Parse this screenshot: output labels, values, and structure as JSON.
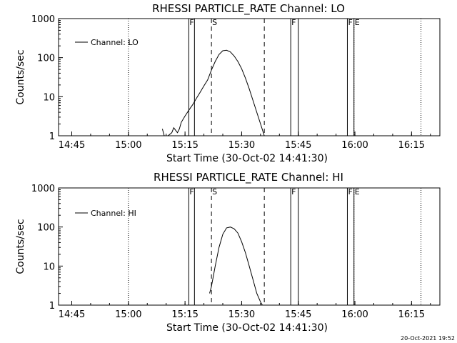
{
  "chart_data": [
    {
      "type": "line",
      "title": "RHESSI PARTICLE_RATE Channel: LO",
      "xlabel": "Start Time (30-Oct-02 14:41:30)",
      "ylabel": "Counts/sec",
      "yscale": "log",
      "ylim": [
        1,
        1000
      ],
      "xlim": [
        "14:41:30",
        "16:22:30"
      ],
      "x_ticks": [
        "14:45",
        "15:00",
        "15:15",
        "15:30",
        "15:45",
        "16:00",
        "16:15"
      ],
      "y_ticks": [
        "1",
        "10",
        "100",
        "1000"
      ],
      "legend": {
        "label": "Channel: LO",
        "placement": "top-left"
      },
      "markers": [
        {
          "label": "F",
          "time": "15:16:00",
          "style": "solid"
        },
        {
          "label": "",
          "time": "15:17:30",
          "style": "solid"
        },
        {
          "label": "S",
          "time": "15:22:00",
          "style": "dashed"
        },
        {
          "label": "",
          "time": "15:36:00",
          "style": "dashed"
        },
        {
          "label": "F",
          "time": "15:43:00",
          "style": "solid"
        },
        {
          "label": "",
          "time": "15:45:00",
          "style": "solid"
        },
        {
          "label": "F",
          "time": "15:58:00",
          "style": "solid"
        },
        {
          "label": "E",
          "time": "15:59:45",
          "style": "solid"
        }
      ],
      "dotted_lines": [
        "15:00:00",
        "15:59:45",
        "16:17:30"
      ],
      "series": [
        {
          "name": "Channel: LO",
          "x": [
            "15:09:00",
            "15:09:30",
            "15:10:30",
            "15:11:30",
            "15:12:00",
            "15:13:00",
            "15:13:30",
            "15:14:00",
            "15:15:00",
            "15:16:00",
            "15:17:00",
            "15:18:00",
            "15:19:00",
            "15:20:00",
            "15:21:00",
            "15:22:00",
            "15:23:00",
            "15:24:00",
            "15:25:00",
            "15:26:00",
            "15:27:00",
            "15:28:00",
            "15:29:00",
            "15:30:00",
            "15:31:00",
            "15:32:00",
            "15:33:00",
            "15:34:00",
            "15:35:00",
            "15:35:45",
            "15:36:00"
          ],
          "y": [
            1.5,
            1.0,
            1.0,
            1.2,
            1.6,
            1.2,
            1.5,
            2.2,
            3.2,
            4.5,
            6.2,
            9.0,
            13,
            19,
            27,
            48,
            80,
            120,
            150,
            155,
            140,
            110,
            80,
            52,
            30,
            16,
            8,
            4,
            2,
            1.2,
            1.0
          ]
        }
      ]
    },
    {
      "type": "line",
      "title": "RHESSI PARTICLE_RATE Channel: HI",
      "xlabel": "Start Time (30-Oct-02 14:41:30)",
      "ylabel": "Counts/sec",
      "yscale": "log",
      "ylim": [
        1,
        1000
      ],
      "xlim": [
        "14:41:30",
        "16:22:30"
      ],
      "x_ticks": [
        "14:45",
        "15:00",
        "15:15",
        "15:30",
        "15:45",
        "16:00",
        "16:15"
      ],
      "y_ticks": [
        "1",
        "10",
        "100",
        "1000"
      ],
      "legend": {
        "label": "Channel: HI",
        "placement": "top-left"
      },
      "markers": [
        {
          "label": "F",
          "time": "15:16:00",
          "style": "solid"
        },
        {
          "label": "",
          "time": "15:17:30",
          "style": "solid"
        },
        {
          "label": "S",
          "time": "15:22:00",
          "style": "dashed"
        },
        {
          "label": "",
          "time": "15:36:00",
          "style": "dashed"
        },
        {
          "label": "F",
          "time": "15:43:00",
          "style": "solid"
        },
        {
          "label": "",
          "time": "15:45:00",
          "style": "solid"
        },
        {
          "label": "F",
          "time": "15:58:00",
          "style": "solid"
        },
        {
          "label": "E",
          "time": "15:59:45",
          "style": "solid"
        }
      ],
      "dotted_lines": [
        "15:00:00",
        "15:59:45",
        "16:17:30"
      ],
      "series": [
        {
          "name": "Channel: HI",
          "x": [
            "15:21:30",
            "15:22:00",
            "15:23:00",
            "15:24:00",
            "15:25:00",
            "15:26:00",
            "15:27:00",
            "15:28:00",
            "15:29:00",
            "15:30:00",
            "15:31:00",
            "15:32:00",
            "15:33:00",
            "15:34:00",
            "15:35:00",
            "15:35:30"
          ],
          "y": [
            2.0,
            3.0,
            10,
            30,
            65,
            95,
            100,
            90,
            70,
            42,
            22,
            10,
            4.5,
            2.0,
            1.2,
            1.0
          ]
        }
      ]
    }
  ],
  "timestamp": "20-Oct-2021 19:52",
  "ui": {
    "panel0": {
      "title": "RHESSI PARTICLE_RATE Channel: LO",
      "xlabel": "Start Time (30-Oct-02 14:41:30)",
      "ylabel": "Counts/sec",
      "legend": "Channel: LO"
    },
    "panel1": {
      "title": "RHESSI PARTICLE_RATE Channel: HI",
      "xlabel": "Start Time (30-Oct-02 14:41:30)",
      "ylabel": "Counts/sec",
      "legend": "Channel: HI"
    }
  }
}
